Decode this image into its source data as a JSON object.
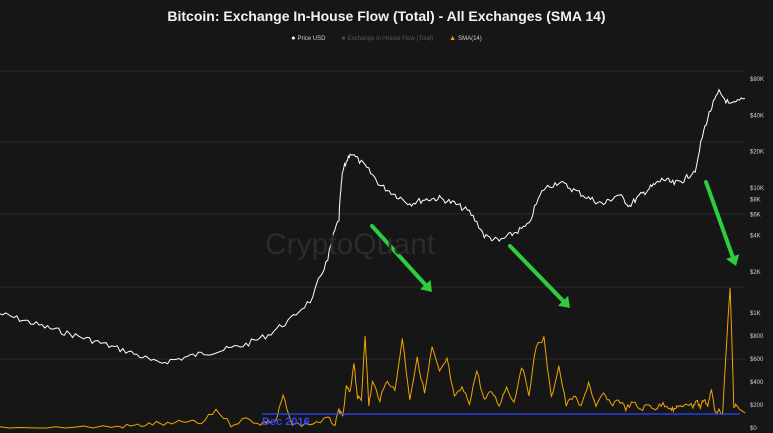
{
  "chart_data": {
    "type": "line",
    "title": "Bitcoin: Exchange In-House Flow (Total) - All Exchanges (SMA 14)",
    "legend": [
      {
        "label": "Price USD",
        "color": "#ffffff",
        "visible": true
      },
      {
        "label": "Exchange In-House Flow (Total)",
        "color": "#555555",
        "visible": false
      },
      {
        "label": "SMA(14)",
        "color": "#f0a500",
        "visible": true
      }
    ],
    "legend_position": "top-center",
    "watermark": "CryptoQuant",
    "annotation": "Dec 2016",
    "annotation_color": "#2f45ff",
    "arrow_color": "#2ecc40",
    "price_axis": {
      "scale": "log",
      "ticks": [
        "$80K",
        "$40K",
        "$20K",
        "$10K",
        "$8K",
        "$6K",
        "$4K",
        "$2K"
      ],
      "tick_values": [
        80000,
        40000,
        20000,
        10000,
        8000,
        6000,
        4000,
        2000
      ]
    },
    "flow_axis": {
      "scale": "linear",
      "ticks": [
        "$1K",
        "$800",
        "$600",
        "$400",
        "$200",
        "$0"
      ],
      "tick_values": [
        1000,
        800,
        600,
        400,
        200,
        0
      ]
    },
    "grid": true,
    "series": [
      {
        "name": "Price USD",
        "color": "#ffffff",
        "x": [
          0,
          0.03,
          0.06,
          0.09,
          0.12,
          0.15,
          0.18,
          0.21,
          0.24,
          0.27,
          0.3,
          0.33,
          0.36,
          0.39,
          0.42,
          0.44,
          0.455,
          0.46,
          0.47,
          0.49,
          0.51,
          0.53,
          0.55,
          0.57,
          0.59,
          0.61,
          0.63,
          0.65,
          0.67,
          0.69,
          0.71,
          0.73,
          0.75,
          0.77,
          0.79,
          0.81,
          0.83,
          0.845,
          0.86,
          0.875,
          0.89,
          0.905,
          0.92,
          0.935,
          0.95,
          0.965,
          0.98,
          1.0
        ],
        "y": [
          900,
          800,
          700,
          620,
          550,
          480,
          420,
          350,
          380,
          420,
          450,
          500,
          600,
          800,
          1200,
          2500,
          5500,
          13500,
          19500,
          15000,
          10500,
          8800,
          7400,
          8000,
          8200,
          7400,
          6300,
          4000,
          3600,
          4200,
          4900,
          9800,
          11200,
          9600,
          8200,
          7300,
          8800,
          7100,
          8700,
          10200,
          11800,
          10800,
          11800,
          14500,
          38000,
          62000,
          48000,
          55000
        ]
      },
      {
        "name": "SMA(14)",
        "color": "#f0a500",
        "x": [
          0,
          0.05,
          0.1,
          0.15,
          0.17,
          0.19,
          0.21,
          0.23,
          0.25,
          0.27,
          0.29,
          0.31,
          0.33,
          0.35,
          0.36,
          0.37,
          0.38,
          0.39,
          0.4,
          0.42,
          0.44,
          0.45,
          0.455,
          0.46,
          0.465,
          0.47,
          0.475,
          0.48,
          0.485,
          0.49,
          0.495,
          0.5,
          0.51,
          0.52,
          0.53,
          0.54,
          0.55,
          0.56,
          0.57,
          0.58,
          0.59,
          0.6,
          0.61,
          0.62,
          0.63,
          0.64,
          0.65,
          0.66,
          0.67,
          0.68,
          0.69,
          0.7,
          0.71,
          0.72,
          0.73,
          0.74,
          0.75,
          0.76,
          0.77,
          0.78,
          0.79,
          0.8,
          0.81,
          0.82,
          0.83,
          0.84,
          0.85,
          0.86,
          0.87,
          0.88,
          0.89,
          0.9,
          0.905,
          0.91,
          0.915,
          0.92,
          0.93,
          0.935,
          0.94,
          0.945,
          0.95,
          0.955,
          0.96,
          0.97,
          0.98,
          0.985,
          0.99,
          1.0
        ],
        "y": [
          2,
          3,
          5,
          10,
          15,
          25,
          40,
          30,
          60,
          35,
          160,
          30,
          80,
          40,
          60,
          55,
          280,
          50,
          30,
          40,
          80,
          30,
          160,
          90,
          360,
          300,
          580,
          260,
          240,
          820,
          200,
          400,
          250,
          420,
          320,
          780,
          260,
          600,
          300,
          700,
          480,
          600,
          260,
          350,
          220,
          500,
          240,
          320,
          200,
          360,
          220,
          540,
          300,
          720,
          780,
          260,
          540,
          200,
          280,
          180,
          400,
          180,
          300,
          200,
          250,
          170,
          220,
          160,
          200,
          170,
          210,
          180,
          150,
          200,
          170,
          220,
          190,
          240,
          180,
          260,
          190,
          330,
          150,
          140,
          1230,
          200,
          180,
          130
        ]
      }
    ]
  }
}
